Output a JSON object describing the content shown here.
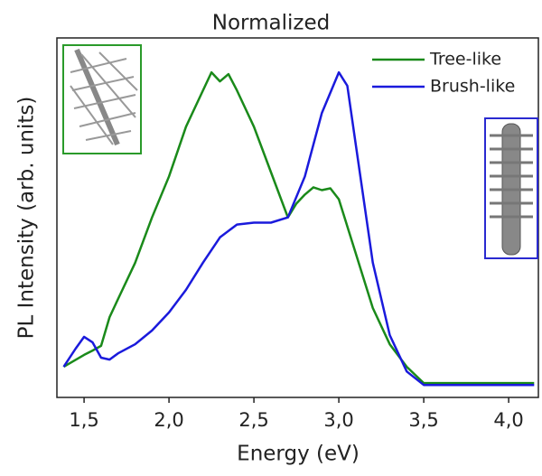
{
  "chart_data": {
    "type": "line",
    "title": "Normalized",
    "xlabel": "Energy (eV)",
    "ylabel": "PL Intensity (arb. units)",
    "xlim": [
      1.34,
      4.175
    ],
    "ylim": [
      -0.04,
      1.11
    ],
    "xticks": [
      {
        "value": 1.5,
        "label": "1,5"
      },
      {
        "value": 2.0,
        "label": "2,0"
      },
      {
        "value": 2.5,
        "label": "2,5"
      },
      {
        "value": 3.0,
        "label": "3,0"
      },
      {
        "value": 3.5,
        "label": "3,5"
      },
      {
        "value": 4.0,
        "label": "4,0"
      }
    ],
    "legend": "upper right",
    "series": [
      {
        "name": "Tree-like",
        "color": "#1a8a1a",
        "x": [
          1.38,
          1.5,
          1.55,
          1.6,
          1.65,
          1.7,
          1.8,
          1.9,
          2.0,
          2.1,
          2.2,
          2.25,
          2.3,
          2.35,
          2.4,
          2.5,
          2.6,
          2.7,
          2.75,
          2.8,
          2.85,
          2.9,
          2.95,
          3.0,
          3.1,
          3.2,
          3.3,
          3.4,
          3.5,
          3.6,
          4.15
        ],
        "values": [
          0.058,
          0.096,
          0.11,
          0.125,
          0.217,
          0.275,
          0.39,
          0.536,
          0.667,
          0.826,
          0.942,
          1.0,
          0.971,
          0.994,
          0.942,
          0.826,
          0.681,
          0.536,
          0.58,
          0.609,
          0.632,
          0.623,
          0.629,
          0.594,
          0.42,
          0.246,
          0.13,
          0.058,
          0.006,
          0.006,
          0.006
        ]
      },
      {
        "name": "Brush-like",
        "color": "#1a1adc",
        "x": [
          1.38,
          1.45,
          1.5,
          1.55,
          1.6,
          1.65,
          1.7,
          1.8,
          1.9,
          2.0,
          2.1,
          2.2,
          2.3,
          2.4,
          2.5,
          2.6,
          2.7,
          2.8,
          2.9,
          3.0,
          3.05,
          3.1,
          3.2,
          3.3,
          3.4,
          3.5,
          4.15
        ],
        "values": [
          0.058,
          0.116,
          0.154,
          0.136,
          0.087,
          0.081,
          0.101,
          0.13,
          0.174,
          0.232,
          0.304,
          0.391,
          0.472,
          0.513,
          0.519,
          0.519,
          0.536,
          0.667,
          0.87,
          1.0,
          0.957,
          0.768,
          0.391,
          0.159,
          0.043,
          0.0,
          0.0
        ]
      }
    ]
  }
}
